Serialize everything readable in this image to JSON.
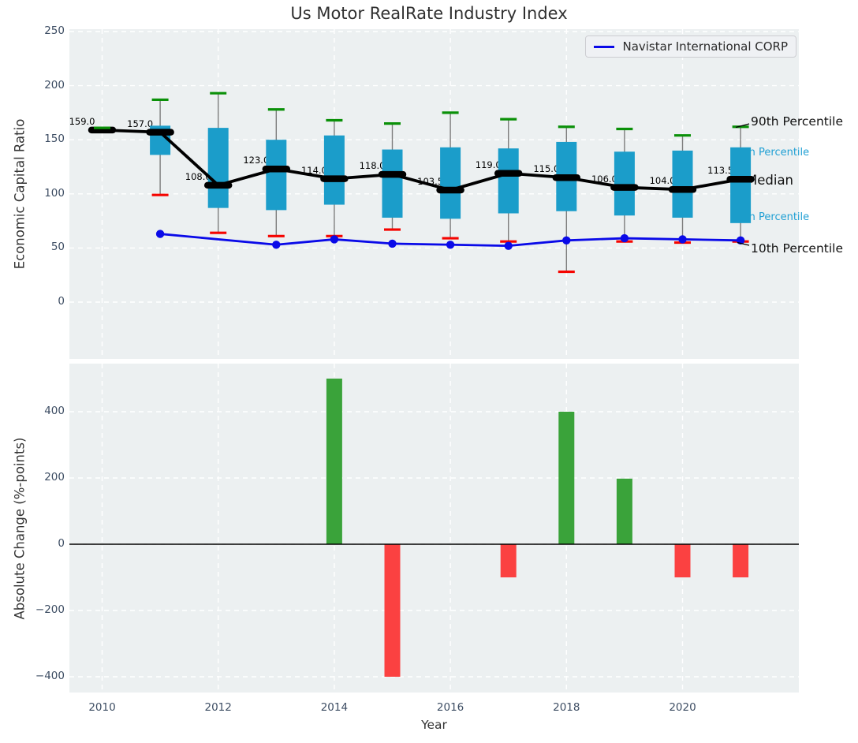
{
  "title": "Us Motor RealRate Industry Index",
  "legend": {
    "label": "Navistar International CORP"
  },
  "annotations": {
    "p90": "90th Percentile",
    "p75": "75th Percentile",
    "median": "Median",
    "p25": "25th Percentile",
    "p10": "10th Percentile"
  },
  "colors": {
    "box_fill": "#1b9dca",
    "cap_high": "#0a9008",
    "cap_low": "#f50400",
    "median_line": "#000000",
    "company_line": "#0a0ae8",
    "bar_positive": "#3aa33a",
    "bar_negative": "#fb4141",
    "annotation_accent": "#21a0d4",
    "axes_bg": "#ecf0f1",
    "grid": "#ffffff",
    "tick_text": "#3d4d63",
    "whisker_stem": "#7d7d7d"
  },
  "chart_data": [
    {
      "type": "boxplot",
      "title": "Us Motor RealRate Industry Index",
      "ylabel": "Economic Capital Ratio",
      "ylim": [
        -51,
        252
      ],
      "yticks": [
        0,
        50,
        100,
        150,
        200,
        250
      ],
      "xticks": [
        2010,
        2012,
        2014,
        2016,
        2018,
        2020
      ],
      "grid": true,
      "legend_position": "upper right",
      "years": [
        2010,
        2011,
        2012,
        2013,
        2014,
        2015,
        2016,
        2017,
        2018,
        2019,
        2020,
        2021
      ],
      "p90": [
        161,
        187,
        193,
        178,
        168,
        165,
        175,
        169,
        162,
        160,
        154,
        162
      ],
      "p75": [
        160,
        163,
        161,
        150,
        154,
        141,
        143,
        142,
        148,
        139,
        140,
        143
      ],
      "median": [
        159,
        157,
        108,
        123,
        114,
        118,
        103.5,
        119,
        115,
        106,
        104,
        113.5
      ],
      "p25": [
        158,
        136,
        87,
        85,
        90,
        78,
        77,
        82,
        84,
        80,
        78,
        73
      ],
      "p10": [
        158.5,
        99,
        64,
        61,
        61,
        67,
        59,
        56,
        28,
        56,
        55,
        56
      ],
      "median_labels": [
        "159.0",
        "157.0",
        "108.0",
        "123.0",
        "114.0",
        "118.0",
        "103.5",
        "119.0",
        "115.0",
        "106.0",
        "104.0",
        "113.5"
      ],
      "series": [
        {
          "name": "Navistar International CORP",
          "x": [
            2011,
            2013,
            2014,
            2015,
            2016,
            2017,
            2018,
            2019,
            2020,
            2021
          ],
          "y": [
            63,
            53,
            58,
            54,
            53,
            52,
            57,
            59,
            58,
            57
          ]
        }
      ]
    },
    {
      "type": "bar",
      "ylabel": "Absolute Change (%-points)",
      "xlabel": "Year",
      "ylim": [
        -450,
        548
      ],
      "yticks": [
        -400,
        -200,
        0,
        200,
        400
      ],
      "xticks": [
        2010,
        2012,
        2014,
        2016,
        2018,
        2020
      ],
      "categories": [
        2011,
        2012,
        2013,
        2014,
        2015,
        2016,
        2017,
        2018,
        2019,
        2020,
        2021
      ],
      "values": [
        0,
        0,
        0,
        500,
        -400,
        0,
        -100,
        400,
        198,
        -100,
        -100
      ]
    }
  ]
}
